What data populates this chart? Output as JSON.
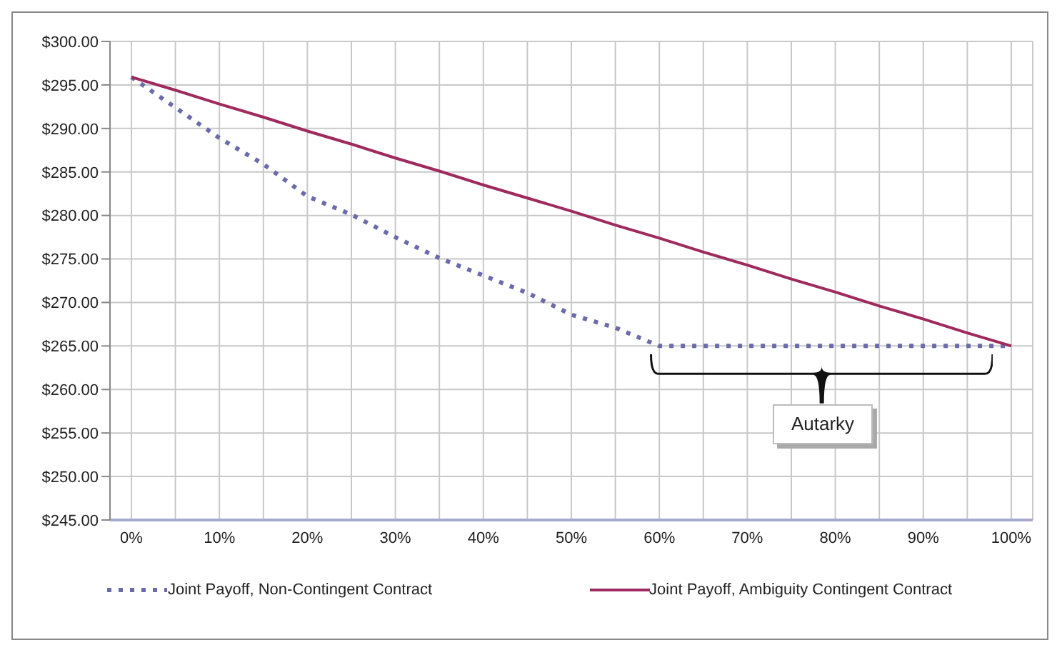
{
  "chart_data": {
    "type": "line",
    "categories": [
      "0%",
      null,
      "10%",
      null,
      "20%",
      null,
      "30%",
      null,
      "40%",
      null,
      "50%",
      null,
      "60%",
      null,
      "70%",
      null,
      "80%",
      null,
      "90%",
      null,
      "100%"
    ],
    "series": [
      {
        "name": "Joint Payoff, Non-Contingent Contract",
        "color": "#6b6bab",
        "line_style": "dotted",
        "values": [
          295.9,
          292.4,
          288.9,
          285.9,
          282.2,
          280.1,
          277.5,
          275.1,
          273.1,
          271.1,
          268.6,
          267.1,
          265.0,
          265.0,
          265.0,
          265.0,
          265.0,
          265.0,
          265.0,
          265.0,
          265.0
        ]
      },
      {
        "name": "Joint Payoff, Ambiguity Contingent Contract",
        "color": "#9e2a5e",
        "line_style": "solid",
        "values": [
          295.9,
          294.4,
          292.8,
          291.3,
          289.7,
          288.2,
          286.6,
          285.1,
          283.5,
          282.0,
          280.5,
          278.9,
          277.4,
          275.8,
          274.3,
          272.7,
          271.2,
          269.6,
          268.1,
          266.5,
          265.0
        ]
      }
    ],
    "ylim": [
      245,
      300
    ],
    "yticks": [
      {
        "value": 245,
        "label": "$245.00"
      },
      {
        "value": 250,
        "label": "$250.00"
      },
      {
        "value": 255,
        "label": "$255.00"
      },
      {
        "value": 260,
        "label": "$260.00"
      },
      {
        "value": 265,
        "label": "$265.00"
      },
      {
        "value": 270,
        "label": "$270.00"
      },
      {
        "value": 275,
        "label": "$275.00"
      },
      {
        "value": 280,
        "label": "$280.00"
      },
      {
        "value": 285,
        "label": "$285.00"
      },
      {
        "value": 290,
        "label": "$290.00"
      },
      {
        "value": 295,
        "label": "$295.00"
      },
      {
        "value": 300,
        "label": "$300.00"
      }
    ],
    "grid": true,
    "legend": "bottom",
    "marker": "none",
    "annotations": [
      "Autarky"
    ]
  }
}
